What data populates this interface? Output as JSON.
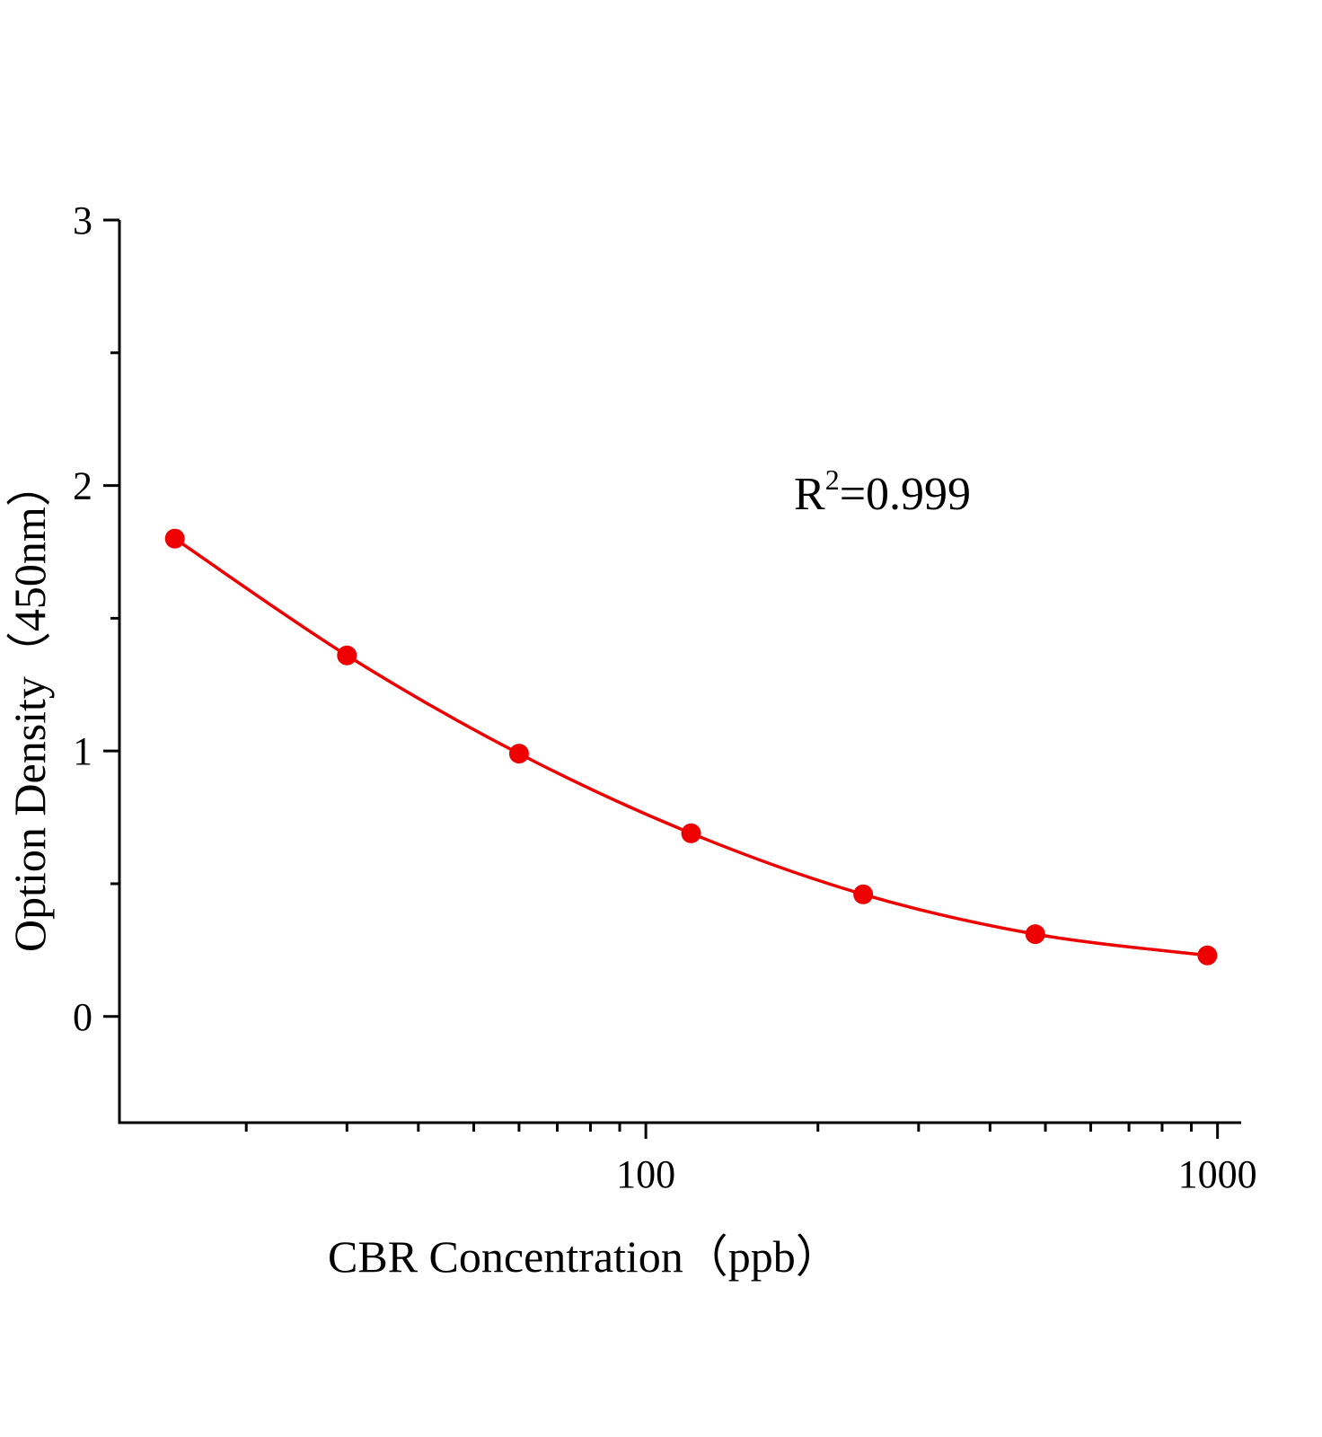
{
  "chart_data": {
    "type": "line",
    "title": "",
    "xlabel": "CBR Concentration（ppb）",
    "ylabel": "Option Density（450nm）",
    "x_scale": "log",
    "xlim": [
      12,
      1100
    ],
    "ylim": [
      -0.4,
      3
    ],
    "x_ticks": [
      100,
      1000
    ],
    "x_tick_labels": [
      "100",
      "1000"
    ],
    "y_ticks": [
      0,
      1,
      2,
      3
    ],
    "y_tick_labels": [
      "0",
      "1",
      "2",
      "3"
    ],
    "grid": false,
    "series": [
      {
        "x": [
          15,
          30,
          60,
          120,
          240,
          480,
          960
        ],
        "y": [
          1.8,
          1.36,
          0.99,
          0.69,
          0.46,
          0.31,
          0.23
        ],
        "color": "#ee0000",
        "marker": "circle",
        "fit_curve": true
      }
    ],
    "annotation": {
      "base": "R",
      "sup": "2",
      "rest": "=0.999"
    }
  }
}
